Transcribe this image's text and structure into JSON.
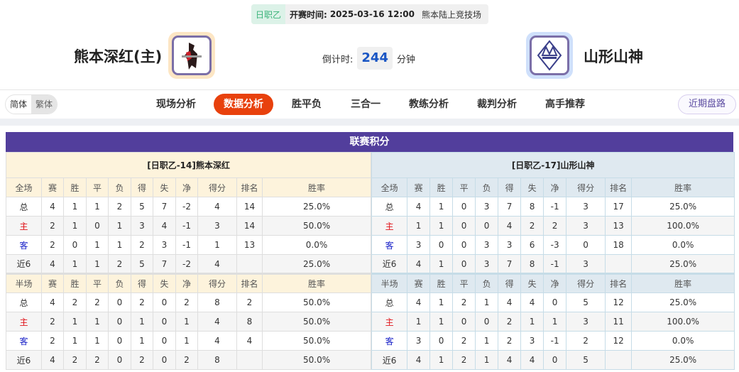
{
  "match": {
    "league": "日职乙",
    "start_label": "开赛时间:",
    "start_time": "2025-03-16 12:00",
    "venue": "熊本陆上竞技场",
    "home_team": "熊本深红(主)",
    "away_team": "山形山神",
    "countdown_label": "倒计时:",
    "countdown_value": "244",
    "countdown_unit": "分钟"
  },
  "lang": {
    "simplified": "简体",
    "traditional": "繁体"
  },
  "nav": {
    "items": [
      "现场分析",
      "数据分析",
      "胜平负",
      "三合一",
      "教练分析",
      "裁判分析",
      "高手推荐"
    ],
    "active": "数据分析",
    "recent_button": "近期盘路"
  },
  "colors": {
    "accent": "#e8410d",
    "board_header": "#523e9c",
    "home_label": "#e0141a",
    "away_label": "#1a22c8"
  },
  "standings": {
    "title": "联赛积分",
    "columns_full": [
      "全场",
      "赛",
      "胜",
      "平",
      "负",
      "得",
      "失",
      "净",
      "得分",
      "排名",
      "胜率"
    ],
    "columns_half": [
      "半场",
      "赛",
      "胜",
      "平",
      "负",
      "得",
      "失",
      "净",
      "得分",
      "排名",
      "胜率"
    ],
    "teams": [
      {
        "title": "[日职乙-14]熊本深红",
        "full": [
          [
            "总",
            "4",
            "1",
            "1",
            "2",
            "5",
            "7",
            "-2",
            "4",
            "14",
            "25.0%"
          ],
          [
            "主",
            "2",
            "1",
            "0",
            "1",
            "3",
            "4",
            "-1",
            "3",
            "14",
            "50.0%"
          ],
          [
            "客",
            "2",
            "0",
            "1",
            "1",
            "2",
            "3",
            "-1",
            "1",
            "13",
            "0.0%"
          ],
          [
            "近6",
            "4",
            "1",
            "1",
            "2",
            "5",
            "7",
            "-2",
            "4",
            "",
            "25.0%"
          ]
        ],
        "half": [
          [
            "总",
            "4",
            "2",
            "2",
            "0",
            "2",
            "0",
            "2",
            "8",
            "2",
            "50.0%"
          ],
          [
            "主",
            "2",
            "1",
            "1",
            "0",
            "1",
            "0",
            "1",
            "4",
            "8",
            "50.0%"
          ],
          [
            "客",
            "2",
            "1",
            "1",
            "0",
            "1",
            "0",
            "1",
            "4",
            "4",
            "50.0%"
          ],
          [
            "近6",
            "4",
            "2",
            "2",
            "0",
            "2",
            "0",
            "2",
            "8",
            "",
            "50.0%"
          ]
        ]
      },
      {
        "title": "[日职乙-17]山形山神",
        "full": [
          [
            "总",
            "4",
            "1",
            "0",
            "3",
            "7",
            "8",
            "-1",
            "3",
            "17",
            "25.0%"
          ],
          [
            "主",
            "1",
            "1",
            "0",
            "0",
            "4",
            "2",
            "2",
            "3",
            "13",
            "100.0%"
          ],
          [
            "客",
            "3",
            "0",
            "0",
            "3",
            "3",
            "6",
            "-3",
            "0",
            "18",
            "0.0%"
          ],
          [
            "近6",
            "4",
            "1",
            "0",
            "3",
            "7",
            "8",
            "-1",
            "3",
            "",
            "25.0%"
          ]
        ],
        "half": [
          [
            "总",
            "4",
            "1",
            "2",
            "1",
            "4",
            "4",
            "0",
            "5",
            "12",
            "25.0%"
          ],
          [
            "主",
            "1",
            "1",
            "0",
            "0",
            "2",
            "1",
            "1",
            "3",
            "11",
            "100.0%"
          ],
          [
            "客",
            "3",
            "0",
            "2",
            "1",
            "2",
            "3",
            "-1",
            "2",
            "12",
            "0.0%"
          ],
          [
            "近6",
            "4",
            "1",
            "2",
            "1",
            "4",
            "4",
            "0",
            "5",
            "",
            "25.0%"
          ]
        ]
      }
    ]
  }
}
